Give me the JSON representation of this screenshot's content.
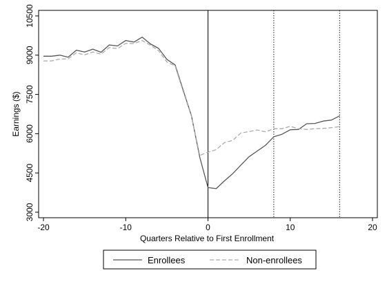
{
  "chart_data": {
    "type": "line",
    "title": "",
    "xlabel": "Quarters Relative to First Enrollment",
    "ylabel": "Earnings ($)",
    "xlim": [
      -20,
      20
    ],
    "ylim": [
      3000,
      10500
    ],
    "x_ticks": [
      -20,
      -10,
      0,
      10,
      20
    ],
    "y_ticks": [
      3000,
      4500,
      6000,
      7500,
      9000,
      10500
    ],
    "grid": false,
    "legend_position": "bottom",
    "reference_lines": [
      0,
      8,
      16
    ],
    "series": [
      {
        "name": "Enrollees",
        "style": "solid",
        "color": "#555555",
        "x": [
          -20,
          -19,
          -18,
          -17,
          -16,
          -15,
          -14,
          -13,
          -12,
          -11,
          -10,
          -9,
          -8,
          -7,
          -6,
          -5,
          -4,
          -3,
          -2,
          -1,
          0,
          1,
          2,
          3,
          4,
          5,
          6,
          7,
          8,
          9,
          10,
          11,
          12,
          13,
          14,
          15,
          16
        ],
        "y": [
          8960,
          8960,
          9000,
          8920,
          9190,
          9120,
          9230,
          9110,
          9390,
          9350,
          9560,
          9500,
          9690,
          9430,
          9260,
          8840,
          8630,
          7650,
          6680,
          5100,
          3940,
          3900,
          4200,
          4470,
          4800,
          5120,
          5340,
          5560,
          5880,
          5980,
          6150,
          6160,
          6380,
          6390,
          6480,
          6520,
          6680
        ]
      },
      {
        "name": "Non-enrollees",
        "style": "dashed",
        "color": "#aaaaaa",
        "x": [
          -20,
          -19,
          -18,
          -17,
          -16,
          -15,
          -14,
          -13,
          -12,
          -11,
          -10,
          -9,
          -8,
          -7,
          -6,
          -5,
          -4,
          -3,
          -2,
          -1,
          0,
          1,
          2,
          3,
          4,
          5,
          6,
          7,
          8,
          9,
          10,
          11,
          12,
          13,
          14,
          15,
          16
        ],
        "y": [
          8780,
          8780,
          8850,
          8860,
          9090,
          9010,
          9120,
          9040,
          9290,
          9250,
          9450,
          9440,
          9560,
          9380,
          9170,
          8740,
          8590,
          7600,
          6660,
          5170,
          5290,
          5390,
          5660,
          5740,
          6030,
          6080,
          6140,
          6070,
          6190,
          6190,
          6280,
          6190,
          6160,
          6190,
          6200,
          6230,
          6270
        ]
      }
    ]
  }
}
